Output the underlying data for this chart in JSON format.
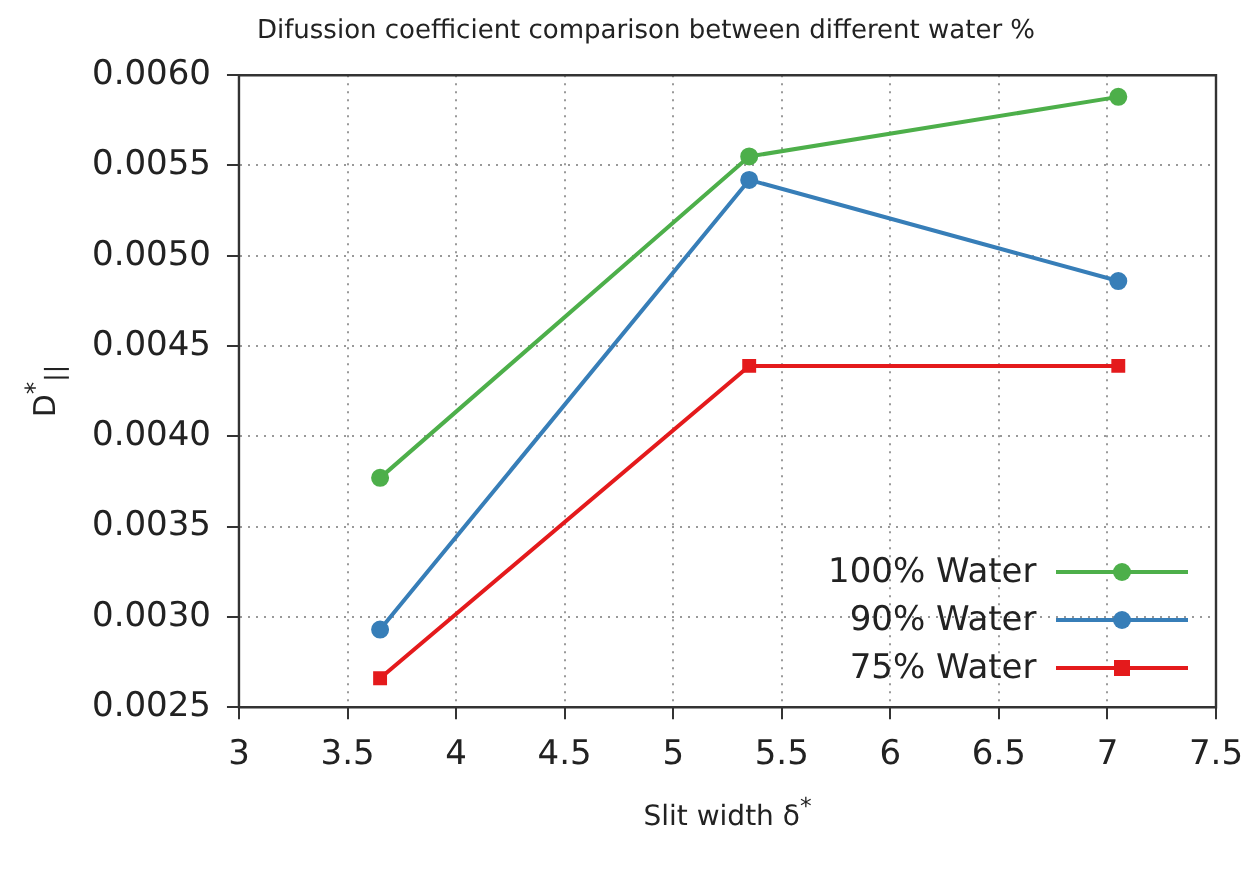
{
  "chart_data": {
    "type": "line",
    "title": "Difussion coefficient comparison between different water %",
    "xlabel": "Slit width δ$^{*}$",
    "ylabel": "D$^{*}$$_{||}$",
    "x": [
      3.65,
      5.35,
      7.05
    ],
    "series": [
      {
        "name": "100% Water",
        "color": "#4daf4a",
        "marker": "circle",
        "values": [
          0.00377,
          0.00555,
          0.00588
        ]
      },
      {
        "name": "90% Water",
        "color": "#377eb8",
        "marker": "circle",
        "values": [
          0.00293,
          0.00542,
          0.00486
        ]
      },
      {
        "name": "75% Water",
        "color": "#e41a1c",
        "marker": "square",
        "values": [
          0.00266,
          0.00439,
          0.00439
        ]
      }
    ],
    "xlim": [
      3,
      7.5
    ],
    "xticks": [
      3,
      3.5,
      4,
      4.5,
      5,
      5.5,
      6,
      6.5,
      7,
      7.5
    ],
    "ylim": [
      0.0025,
      0.006
    ],
    "yticks": [
      {
        "value": 0.0025,
        "label": "0.0025"
      },
      {
        "value": 0.003,
        "label": "0.0030"
      },
      {
        "value": 0.0035,
        "label": "0.0035"
      },
      {
        "value": 0.004,
        "label": "0.0040"
      },
      {
        "value": 0.0045,
        "label": "0.0045"
      },
      {
        "value": 0.005,
        "label": "0.0050"
      },
      {
        "value": 0.0055,
        "label": "0.0055"
      },
      {
        "value": 0.006,
        "label": "0.0060"
      }
    ],
    "grid": true,
    "legend": "bottom right",
    "line_style": "solid"
  }
}
